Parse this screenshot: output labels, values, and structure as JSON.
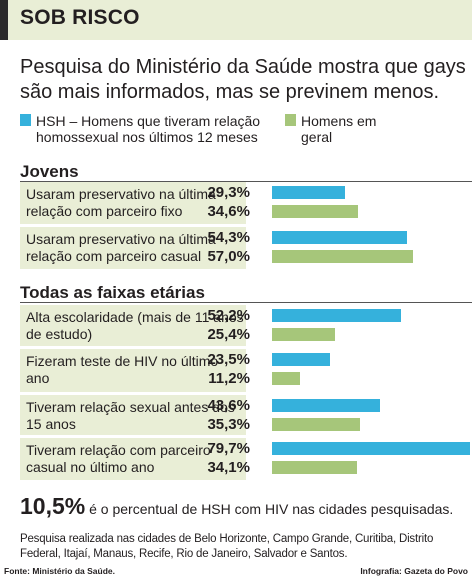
{
  "header": {
    "title": "SOB RISCO"
  },
  "subtitle": "Pesquisa do Ministério da Saúde mostra que gays são mais informados, mas se previnem menos.",
  "colors": {
    "hsh": "#35b1dc",
    "geral": "#a6c67a",
    "box": "#e9eed6"
  },
  "legend": {
    "hsh_label": "HSH – Homens que tiveram relação homossexual nos últimos 12 meses",
    "geral_label": "Homens em geral"
  },
  "sections": [
    "Jovens",
    "Todas as faixas etárias"
  ],
  "chart_data": {
    "type": "bar",
    "orientation": "horizontal",
    "series": [
      {
        "name": "HSH – Homens que tiveram relação homossexual nos últimos 12 meses",
        "color": "#35b1dc",
        "values": [
          29.3,
          54.3,
          52.2,
          23.5,
          43.6,
          79.7
        ],
        "labels": [
          "29,3%",
          "54,3%",
          "52,2%",
          "23,5%",
          "43,6%",
          "79,7%"
        ]
      },
      {
        "name": "Homens em geral",
        "color": "#a6c67a",
        "values": [
          34.6,
          57.0,
          25.4,
          11.2,
          35.3,
          34.1
        ],
        "labels": [
          "34,6%",
          "57,0%",
          "25,4%",
          "11,2%",
          "35,3%",
          "34,1%"
        ]
      }
    ],
    "categories": [
      "Usaram preservativo na última relação com parceiro fixo",
      "Usaram preservativo na última relação com parceiro casual",
      "Alta escolaridade (mais de 11 anos de estudo)",
      "Fizeram teste de HIV no último ano",
      "Tiveram relação sexual antes dos 15 anos",
      "Tiveram relação com parceiro casual no último ano"
    ],
    "groups": [
      "Jovens",
      "Jovens",
      "Todas as faixas etárias",
      "Todas as faixas etárias",
      "Todas as faixas etárias",
      "Todas as faixas etárias"
    ],
    "xlim": [
      0,
      80
    ]
  },
  "highlight": {
    "value": "10,5%",
    "text": "é o percentual de HSH com HIV nas cidades pesquisadas."
  },
  "note": "Pesquisa realizada nas cidades de Belo Horizonte, Campo Grande, Curitiba, Distrito Federal, Itajaí, Manaus, Recife, Rio de Janeiro, Salvador e Santos.",
  "footer": {
    "source": "Fonte: Ministério da Saúde.",
    "credit": "Infografia: Gazeta do Povo"
  }
}
